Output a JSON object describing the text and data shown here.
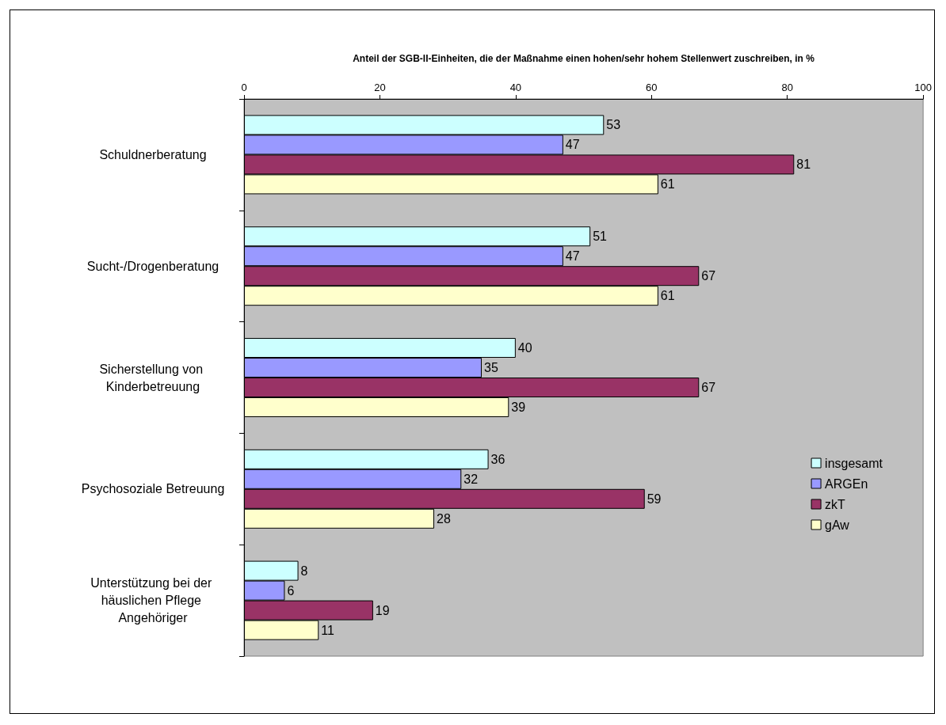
{
  "chart_data": {
    "type": "bar",
    "orientation": "horizontal",
    "xlabel": "Anteil der SGB-II-Einheiten, die der Maßnahme einen hohen/sehr hohem Stellenwert zuschreiben, in %",
    "categories": [
      "Schuldnerberatung",
      "Sucht-/Drogenberatung",
      "Sicherstellung von Kinderbetreuung",
      "Psychosoziale Betreuung",
      "Unterstützung bei der häuslichen Pflege Angehöriger"
    ],
    "series": [
      {
        "name": "insgesamt",
        "color": "#ccffff",
        "values": [
          53,
          51,
          40,
          36,
          8
        ]
      },
      {
        "name": "ARGEn",
        "color": "#9999ff",
        "values": [
          47,
          47,
          35,
          32,
          6
        ]
      },
      {
        "name": "zkT",
        "color": "#993366",
        "values": [
          81,
          67,
          67,
          59,
          19
        ]
      },
      {
        "name": "gAw",
        "color": "#ffffcc",
        "values": [
          61,
          61,
          39,
          28,
          11
        ]
      }
    ],
    "xlim": [
      0,
      100
    ],
    "xticks": [
      0,
      20,
      40,
      60,
      80,
      100
    ],
    "grid": false,
    "legend": "bottom right",
    "data_labels": true
  }
}
